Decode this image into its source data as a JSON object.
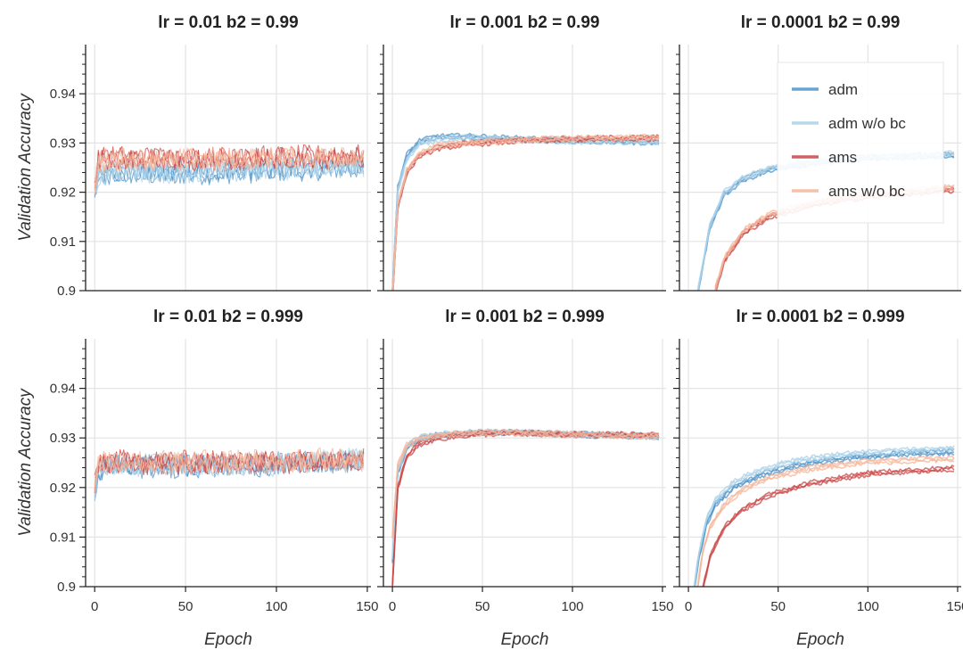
{
  "chart_data": {
    "type": "line",
    "layout": "2x3 grid",
    "ylabel": "Validation Accuracy",
    "xlabel": "Epoch",
    "ylim": [
      0.9,
      0.95
    ],
    "yticks": [
      0.9,
      0.91,
      0.92,
      0.93,
      0.94
    ],
    "ytick_labels": [
      "0.9",
      "0.91",
      "0.92",
      "0.93",
      "0.94"
    ],
    "xlim": [
      -5,
      152
    ],
    "xticks": [
      0,
      50,
      100,
      150
    ],
    "xtick_labels": [
      "0",
      "50",
      "100",
      "150"
    ],
    "grid": true,
    "legend": {
      "location": "top-right of top-right panel",
      "entries": [
        {
          "label": "adm",
          "color": "#4f93c8"
        },
        {
          "label": "adm w/o bc",
          "color": "#a9d1e8"
        },
        {
          "label": "ams",
          "color": "#c94545"
        },
        {
          "label": "ams w/o bc",
          "color": "#f4b699"
        }
      ]
    },
    "panels": [
      {
        "title": "lr = 0.01    b2 = 0.99",
        "series": [
          {
            "name": "adm",
            "x": [
              0,
              2,
              10,
              30,
              60,
              100,
              148
            ],
            "mean": [
              0.919,
              0.923,
              0.924,
              0.9238,
              0.924,
              0.9245,
              0.9252
            ],
            "band": 0.0018
          },
          {
            "name": "adm w/o bc",
            "x": [
              0,
              2,
              10,
              30,
              60,
              100,
              148
            ],
            "mean": [
              0.9195,
              0.9235,
              0.9243,
              0.9242,
              0.9244,
              0.9248,
              0.9256
            ],
            "band": 0.0017
          },
          {
            "name": "ams",
            "x": [
              0,
              2,
              10,
              30,
              60,
              100,
              148
            ],
            "mean": [
              0.9205,
              0.9265,
              0.927,
              0.9268,
              0.9268,
              0.927,
              0.9273
            ],
            "band": 0.0015
          },
          {
            "name": "ams w/o bc",
            "x": [
              0,
              2,
              10,
              30,
              60,
              100,
              148
            ],
            "mean": [
              0.9208,
              0.9262,
              0.9267,
              0.9265,
              0.9266,
              0.9268,
              0.9271
            ],
            "band": 0.0015
          }
        ]
      },
      {
        "title": "lr = 0.001    b2 = 0.99",
        "series": [
          {
            "name": "adm",
            "x": [
              0,
              3,
              8,
              15,
              25,
              40,
              70,
              100,
              148
            ],
            "mean": [
              0.9,
              0.921,
              0.9275,
              0.9303,
              0.9312,
              0.9313,
              0.9308,
              0.9305,
              0.9302
            ],
            "band": 0.0006
          },
          {
            "name": "adm w/o bc",
            "x": [
              0,
              3,
              8,
              15,
              25,
              40,
              70,
              100,
              148
            ],
            "mean": [
              0.9,
              0.9205,
              0.9268,
              0.9298,
              0.9308,
              0.931,
              0.9307,
              0.9304,
              0.9302
            ],
            "band": 0.0006
          },
          {
            "name": "ams",
            "x": [
              0,
              3,
              8,
              15,
              25,
              40,
              70,
              100,
              148
            ],
            "mean": [
              0.898,
              0.917,
              0.924,
              0.9275,
              0.929,
              0.9298,
              0.9305,
              0.9308,
              0.931
            ],
            "band": 0.0006
          },
          {
            "name": "ams w/o bc",
            "x": [
              0,
              3,
              8,
              15,
              25,
              40,
              70,
              100,
              148
            ],
            "mean": [
              0.8985,
              0.9175,
              0.9245,
              0.9278,
              0.9293,
              0.93,
              0.9306,
              0.9309,
              0.9311
            ],
            "band": 0.0006
          }
        ]
      },
      {
        "title": "lr = 0.0001    b2 = 0.99",
        "series": [
          {
            "name": "adm",
            "x": [
              5,
              8,
              12,
              20,
              30,
              45,
              70,
              100,
              148
            ],
            "mean": [
              0.899,
              0.905,
              0.913,
              0.9195,
              0.9225,
              0.9245,
              0.926,
              0.927,
              0.9275
            ],
            "band": 0.0007
          },
          {
            "name": "adm w/o bc",
            "x": [
              5,
              8,
              12,
              20,
              30,
              45,
              70,
              100,
              148
            ],
            "mean": [
              0.8995,
              0.9055,
              0.9135,
              0.92,
              0.9228,
              0.9248,
              0.9262,
              0.9272,
              0.9278
            ],
            "band": 0.0007
          },
          {
            "name": "ams",
            "x": [
              15,
              20,
              30,
              45,
              70,
              100,
              148
            ],
            "mean": [
              0.9,
              0.906,
              0.9115,
              0.915,
              0.9175,
              0.9192,
              0.9205
            ],
            "band": 0.0006
          },
          {
            "name": "ams w/o bc",
            "x": [
              15,
              20,
              30,
              45,
              70,
              100,
              148
            ],
            "mean": [
              0.9005,
              0.9065,
              0.912,
              0.9155,
              0.918,
              0.9196,
              0.921
            ],
            "band": 0.0006
          }
        ]
      },
      {
        "title": "lr = 0.01    b2 = 0.999",
        "series": [
          {
            "name": "adm",
            "x": [
              0,
              2,
              10,
              30,
              60,
              100,
              148
            ],
            "mean": [
              0.918,
              0.9235,
              0.9245,
              0.9243,
              0.9244,
              0.9247,
              0.9255
            ],
            "band": 0.0018
          },
          {
            "name": "adm w/o bc",
            "x": [
              0,
              2,
              10,
              30,
              60,
              100,
              148
            ],
            "mean": [
              0.9175,
              0.9238,
              0.9246,
              0.9244,
              0.9245,
              0.9248,
              0.9256
            ],
            "band": 0.0018
          },
          {
            "name": "ams",
            "x": [
              0,
              2,
              10,
              30,
              60,
              100,
              148
            ],
            "mean": [
              0.92,
              0.9248,
              0.9252,
              0.925,
              0.925,
              0.9252,
              0.9257
            ],
            "band": 0.0017
          },
          {
            "name": "ams w/o bc",
            "x": [
              0,
              2,
              10,
              30,
              60,
              100,
              148
            ],
            "mean": [
              0.9205,
              0.925,
              0.9253,
              0.9251,
              0.9251,
              0.9253,
              0.9258
            ],
            "band": 0.0016
          }
        ]
      },
      {
        "title": "lr = 0.001    b2 = 0.999",
        "series": [
          {
            "name": "adm",
            "x": [
              0,
              3,
              8,
              15,
              25,
              45,
              65,
              100,
              148
            ],
            "mean": [
              0.905,
              0.923,
              0.928,
              0.9298,
              0.9305,
              0.931,
              0.9312,
              0.9307,
              0.9303
            ],
            "band": 0.0006
          },
          {
            "name": "adm w/o bc",
            "x": [
              0,
              3,
              8,
              15,
              25,
              45,
              65,
              100,
              148
            ],
            "mean": [
              0.906,
              0.9235,
              0.9283,
              0.93,
              0.9307,
              0.9311,
              0.9312,
              0.9307,
              0.9302
            ],
            "band": 0.0006
          },
          {
            "name": "ams",
            "x": [
              0,
              3,
              8,
              15,
              25,
              45,
              65,
              100,
              148
            ],
            "mean": [
              0.9,
              0.92,
              0.9262,
              0.9288,
              0.93,
              0.9308,
              0.931,
              0.9307,
              0.9305
            ],
            "band": 0.0006
          },
          {
            "name": "ams w/o bc",
            "x": [
              0,
              3,
              8,
              15,
              25,
              45,
              65,
              100,
              148
            ],
            "mean": [
              0.91,
              0.9245,
              0.9285,
              0.93,
              0.9306,
              0.931,
              0.9311,
              0.9307,
              0.9304
            ],
            "band": 0.0006
          }
        ]
      },
      {
        "title": "lr = 0.0001    b2 = 0.999",
        "series": [
          {
            "name": "adm",
            "x": [
              3,
              6,
              10,
              15,
              25,
              40,
              60,
              90,
              120,
              148
            ],
            "mean": [
              0.899,
              0.906,
              0.9125,
              0.9165,
              0.92,
              0.9225,
              0.9245,
              0.926,
              0.9268,
              0.9272
            ],
            "band": 0.0006
          },
          {
            "name": "adm w/o bc",
            "x": [
              3,
              6,
              10,
              15,
              25,
              40,
              60,
              90,
              120,
              148
            ],
            "mean": [
              0.8995,
              0.907,
              0.9135,
              0.9175,
              0.921,
              0.9235,
              0.9255,
              0.9268,
              0.9274,
              0.9278
            ],
            "band": 0.0006
          },
          {
            "name": "ams",
            "x": [
              8,
              12,
              20,
              30,
              45,
              70,
              100,
              148
            ],
            "mean": [
              0.8995,
              0.906,
              0.912,
              0.9155,
              0.9185,
              0.921,
              0.9228,
              0.9238
            ],
            "band": 0.0007
          },
          {
            "name": "ams w/o bc",
            "x": [
              5,
              8,
              12,
              20,
              30,
              45,
              70,
              100,
              148
            ],
            "mean": [
              0.8995,
              0.907,
              0.912,
              0.9165,
              0.9195,
              0.922,
              0.924,
              0.9252,
              0.9258
            ],
            "band": 0.0007
          }
        ]
      }
    ]
  }
}
